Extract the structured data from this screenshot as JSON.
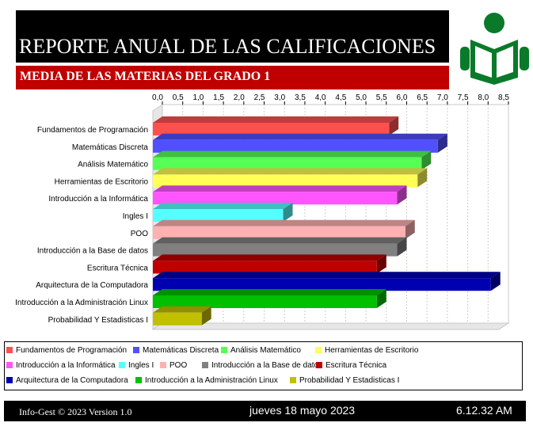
{
  "header": {
    "title": "REPORTE ANUAL DE LAS CALIFICACIONES",
    "subtitle": "MEDIA DE LAS MATERIAS DEL GRADO 1"
  },
  "logo": {
    "icon": "reader-icon",
    "color": "#0a7a2a"
  },
  "footer": {
    "app": "Info-Gest © 2023 Version 1.0",
    "date": "jueves 18 mayo 2023",
    "time": "6.12.32 AM"
  },
  "chart_data": {
    "type": "bar",
    "orientation": "horizontal",
    "xlim": [
      0,
      8.5
    ],
    "tick_step": 0.5,
    "ticks": [
      "0,0",
      "0,5",
      "1,0",
      "1,5",
      "2,0",
      "2,5",
      "3,0",
      "3,5",
      "4,0",
      "4,5",
      "5,0",
      "5,5",
      "6,0",
      "6,5",
      "7,0",
      "7,5",
      "8,0",
      "8,5"
    ],
    "grid": true,
    "legend_position": "bottom",
    "categories": [
      "Fundamentos de Programación",
      "Matemáticas Discreta",
      "Análisis Matemático",
      "Herramientas de Escritorio",
      "Introducción a la Informática",
      "Ingles I",
      "POO",
      "Introducción a la Base de datos",
      "Escritura Técnica",
      "Arquitectura de la Computadora",
      "Introducción a la Administración Linux",
      "Probabilidad Y Estadisticas I"
    ],
    "values": [
      5.8,
      7.0,
      6.6,
      6.5,
      6.0,
      3.2,
      6.2,
      6.0,
      5.5,
      8.3,
      5.5,
      1.2
    ],
    "colors": [
      "#ff5050",
      "#5050ff",
      "#55ff55",
      "#ffff55",
      "#ff55ff",
      "#55ffff",
      "#ffb0b0",
      "#808080",
      "#c00000",
      "#0000b0",
      "#00c000",
      "#c0c000"
    ]
  }
}
